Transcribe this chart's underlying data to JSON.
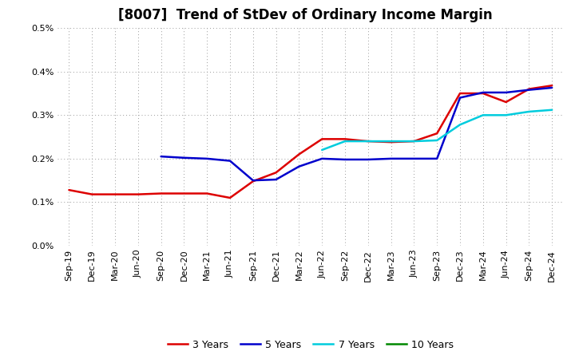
{
  "title": "[8007]  Trend of StDev of Ordinary Income Margin",
  "x_labels": [
    "Sep-19",
    "Dec-19",
    "Mar-20",
    "Jun-20",
    "Sep-20",
    "Dec-20",
    "Mar-21",
    "Jun-21",
    "Sep-21",
    "Dec-21",
    "Mar-22",
    "Jun-22",
    "Sep-22",
    "Dec-22",
    "Mar-23",
    "Jun-23",
    "Sep-23",
    "Dec-23",
    "Mar-24",
    "Jun-24",
    "Sep-24",
    "Dec-24"
  ],
  "ylim": [
    0.0,
    0.005
  ],
  "yticks": [
    0.0,
    0.001,
    0.002,
    0.003,
    0.004,
    0.005
  ],
  "ytick_labels": [
    "0.0%",
    "0.1%",
    "0.2%",
    "0.3%",
    "0.4%",
    "0.5%"
  ],
  "series": {
    "3 Years": {
      "color": "#dd0000",
      "linewidth": 1.8,
      "values": [
        0.00128,
        0.00118,
        0.00118,
        0.00118,
        0.0012,
        0.0012,
        0.0012,
        0.0011,
        0.00148,
        0.00168,
        0.0021,
        0.00245,
        0.00245,
        0.0024,
        0.00238,
        0.0024,
        0.00258,
        0.0035,
        0.0035,
        0.0033,
        0.0036,
        0.00368
      ]
    },
    "5 Years": {
      "color": "#0000cc",
      "linewidth": 1.8,
      "values": [
        null,
        null,
        null,
        null,
        0.00205,
        0.00202,
        0.002,
        0.00195,
        0.0015,
        0.00152,
        0.00182,
        0.002,
        0.00198,
        0.00198,
        0.002,
        0.002,
        0.002,
        0.0034,
        0.00352,
        0.00352,
        0.00358,
        0.00363
      ]
    },
    "7 Years": {
      "color": "#00ccdd",
      "linewidth": 1.8,
      "values": [
        null,
        null,
        null,
        null,
        null,
        null,
        null,
        null,
        null,
        null,
        null,
        0.0022,
        0.0024,
        0.0024,
        0.0024,
        0.0024,
        0.00242,
        0.00278,
        0.003,
        0.003,
        0.00308,
        0.00312
      ]
    },
    "10 Years": {
      "color": "#008800",
      "linewidth": 1.8,
      "values": [
        null,
        null,
        null,
        null,
        null,
        null,
        null,
        null,
        null,
        null,
        null,
        null,
        null,
        null,
        null,
        null,
        null,
        null,
        null,
        null,
        null,
        null
      ]
    }
  },
  "legend_order": [
    "3 Years",
    "5 Years",
    "7 Years",
    "10 Years"
  ],
  "background_color": "#ffffff",
  "grid_color": "#999999",
  "title_fontsize": 12,
  "tick_fontsize": 8,
  "legend_fontsize": 9
}
